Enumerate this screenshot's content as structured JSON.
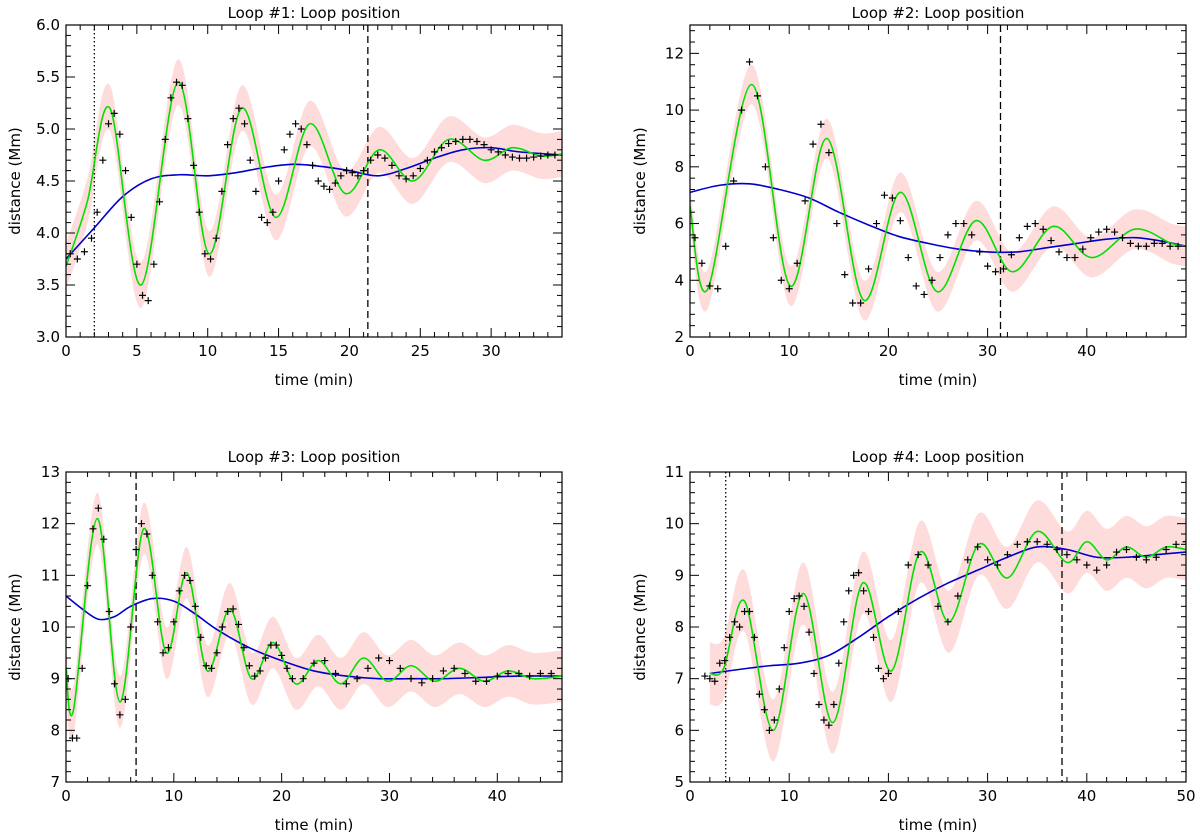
{
  "colors": {
    "fit": "#00e000",
    "trend": "#0000cc",
    "band": "#ffdcdc",
    "data": "#000000"
  },
  "chart_data": [
    {
      "type": "line",
      "title": "Loop #1: Loop position",
      "xlabel": "time (min)",
      "ylabel": "distance (Mm)",
      "xlim": [
        0,
        35
      ],
      "ylim": [
        3.0,
        6.0
      ],
      "xticks": [
        0,
        5,
        10,
        15,
        20,
        25,
        30
      ],
      "xtick_labels": [
        "0",
        "5",
        "10",
        "15",
        "20",
        "25",
        "30"
      ],
      "yticks": [
        3.0,
        3.5,
        4.0,
        4.5,
        5.0,
        5.5,
        6.0
      ],
      "ytick_labels": [
        "3.0",
        "3.5",
        "4.0",
        "4.5",
        "5.0",
        "5.5",
        "6.0"
      ],
      "vlines": [
        {
          "x": 2.0,
          "style": "dotted"
        },
        {
          "x": 21.3,
          "style": "dashed"
        }
      ],
      "series": [
        {
          "name": "trend",
          "style": "blue-line",
          "x": [
            0,
            2,
            4,
            6,
            8,
            10,
            12,
            14,
            16,
            18,
            20,
            22,
            24,
            26,
            28,
            30,
            32,
            35
          ],
          "y": [
            3.75,
            4.05,
            4.35,
            4.52,
            4.56,
            4.55,
            4.58,
            4.63,
            4.66,
            4.64,
            4.6,
            4.55,
            4.62,
            4.72,
            4.8,
            4.82,
            4.78,
            4.75
          ]
        },
        {
          "name": "fit",
          "style": "green-line",
          "x": [
            0,
            1.5,
            3.1,
            5.3,
            7.9,
            10.1,
            12.4,
            14.8,
            17.2,
            19.7,
            22.1,
            24.5,
            27.0,
            29.5,
            31.5,
            33.5,
            35
          ],
          "y": [
            3.68,
            4.3,
            5.2,
            3.5,
            5.45,
            3.8,
            5.2,
            4.15,
            5.05,
            4.38,
            4.8,
            4.5,
            4.9,
            4.7,
            4.82,
            4.74,
            4.76
          ]
        },
        {
          "name": "observed",
          "style": "plus-markers",
          "x": [
            0.3,
            0.8,
            1.3,
            1.8,
            2.2,
            2.6,
            3.0,
            3.4,
            3.8,
            4.2,
            4.6,
            5.0,
            5.4,
            5.8,
            6.2,
            6.6,
            7.0,
            7.4,
            7.8,
            8.2,
            8.6,
            9.0,
            9.4,
            9.8,
            10.2,
            10.6,
            11.0,
            11.4,
            11.8,
            12.2,
            12.6,
            13.0,
            13.4,
            13.8,
            14.2,
            14.6,
            15.0,
            15.4,
            15.8,
            16.2,
            16.6,
            17.0,
            17.4,
            17.8,
            18.2,
            18.6,
            19.0,
            19.4,
            19.8,
            20.2,
            20.6,
            21.0,
            21.5,
            22.0,
            22.5,
            23.0,
            23.5,
            24.0,
            24.5,
            25.0,
            25.5,
            26.0,
            26.5,
            27.0,
            27.5,
            28.0,
            28.5,
            29.0,
            29.5,
            30.0,
            30.5,
            31.0,
            31.5,
            32.0,
            32.5,
            33.0,
            33.5,
            34.0,
            34.5
          ],
          "y": [
            3.8,
            3.75,
            3.82,
            3.95,
            4.2,
            4.7,
            5.05,
            5.15,
            4.95,
            4.6,
            4.15,
            3.7,
            3.4,
            3.35,
            3.7,
            4.3,
            4.9,
            5.3,
            5.45,
            5.42,
            5.1,
            4.65,
            4.2,
            3.8,
            3.75,
            3.95,
            4.4,
            4.85,
            5.1,
            5.2,
            5.05,
            4.7,
            4.4,
            4.15,
            4.1,
            4.2,
            4.5,
            4.8,
            4.95,
            5.05,
            5.0,
            4.85,
            4.65,
            4.5,
            4.45,
            4.42,
            4.48,
            4.55,
            4.6,
            4.58,
            4.55,
            4.6,
            4.7,
            4.75,
            4.72,
            4.65,
            4.55,
            4.52,
            4.55,
            4.62,
            4.7,
            4.78,
            4.82,
            4.86,
            4.88,
            4.9,
            4.9,
            4.88,
            4.85,
            4.8,
            4.78,
            4.75,
            4.73,
            4.72,
            4.72,
            4.73,
            4.74,
            4.75,
            4.75
          ]
        }
      ],
      "band_halfwidth": 0.22
    },
    {
      "type": "line",
      "title": "Loop #2: Loop position",
      "xlabel": "time (min)",
      "ylabel": "distance (Mm)",
      "xlim": [
        0,
        50
      ],
      "ylim": [
        2,
        13
      ],
      "xticks": [
        0,
        10,
        20,
        30,
        40
      ],
      "xtick_labels": [
        "0",
        "10",
        "20",
        "30",
        "40"
      ],
      "yticks": [
        2,
        4,
        6,
        8,
        10,
        12
      ],
      "ytick_labels": [
        "2",
        "4",
        "6",
        "8",
        "10",
        "12"
      ],
      "vlines": [
        {
          "x": 31.3,
          "style": "dashed"
        }
      ],
      "series": [
        {
          "name": "trend",
          "style": "blue-line",
          "x": [
            0,
            3,
            6,
            9,
            12,
            15,
            18,
            21,
            24,
            27,
            30,
            33,
            36,
            39,
            42,
            45,
            48,
            50
          ],
          "y": [
            7.1,
            7.35,
            7.4,
            7.2,
            6.9,
            6.4,
            5.95,
            5.55,
            5.3,
            5.1,
            5.0,
            5.0,
            5.15,
            5.3,
            5.45,
            5.5,
            5.35,
            5.2
          ]
        },
        {
          "name": "fit",
          "style": "green-line",
          "x": [
            0,
            1.8,
            6.2,
            10.1,
            13.8,
            17.5,
            21.2,
            24.9,
            28.8,
            32.5,
            36.6,
            40.5,
            44.8,
            48.5,
            50
          ],
          "y": [
            6.6,
            3.7,
            10.9,
            3.8,
            9.0,
            3.3,
            7.1,
            3.6,
            6.1,
            4.3,
            5.9,
            4.8,
            5.8,
            5.3,
            5.2
          ]
        },
        {
          "name": "observed",
          "style": "plus-markers",
          "x": [
            0.5,
            1.2,
            2.0,
            2.8,
            3.6,
            4.4,
            5.2,
            6.0,
            6.8,
            7.6,
            8.4,
            9.2,
            10.0,
            10.8,
            11.6,
            12.4,
            13.2,
            14.0,
            14.8,
            15.6,
            16.4,
            17.2,
            18.0,
            18.8,
            19.6,
            20.4,
            21.2,
            22.0,
            22.8,
            23.6,
            24.4,
            25.2,
            26.0,
            26.8,
            27.6,
            28.4,
            29.2,
            30.0,
            30.8,
            31.6,
            32.4,
            33.2,
            34.0,
            34.8,
            35.6,
            36.4,
            37.2,
            38.0,
            38.8,
            39.6,
            40.4,
            41.2,
            42.0,
            42.8,
            43.6,
            44.4,
            45.2,
            46.0,
            46.8,
            47.6,
            48.4,
            49.2
          ],
          "y": [
            5.5,
            4.6,
            3.8,
            3.7,
            5.2,
            7.5,
            10.0,
            11.7,
            10.5,
            8.0,
            5.5,
            4.0,
            3.7,
            4.6,
            6.8,
            8.8,
            9.5,
            8.5,
            6.0,
            4.2,
            3.2,
            3.2,
            4.4,
            6.0,
            7.0,
            6.9,
            6.1,
            4.8,
            3.8,
            3.5,
            4.0,
            4.8,
            5.6,
            6.0,
            6.0,
            5.6,
            5.0,
            4.5,
            4.3,
            4.4,
            4.9,
            5.5,
            5.9,
            6.0,
            5.8,
            5.4,
            5.0,
            4.8,
            4.8,
            5.1,
            5.5,
            5.7,
            5.8,
            5.7,
            5.5,
            5.3,
            5.2,
            5.2,
            5.3,
            5.3,
            5.2,
            5.2
          ]
        }
      ],
      "band_halfwidth": 0.7
    },
    {
      "type": "line",
      "title": "Loop #3: Loop position",
      "xlabel": "time (min)",
      "ylabel": "distance (Mm)",
      "xlim": [
        0,
        46
      ],
      "ylim": [
        7,
        13
      ],
      "xticks": [
        0,
        10,
        20,
        30,
        40
      ],
      "xtick_labels": [
        "0",
        "10",
        "20",
        "30",
        "40"
      ],
      "yticks": [
        7,
        8,
        9,
        10,
        11,
        12,
        13
      ],
      "ytick_labels": [
        "7",
        "8",
        "9",
        "10",
        "11",
        "12",
        "13"
      ],
      "vlines": [
        {
          "x": 6.5,
          "style": "dashed"
        }
      ],
      "series": [
        {
          "name": "trend",
          "style": "blue-line",
          "x": [
            0,
            1.5,
            3,
            4.5,
            6,
            8,
            10,
            12,
            14,
            17,
            20,
            23,
            26,
            29,
            32,
            35,
            38,
            42,
            46
          ],
          "y": [
            10.6,
            10.35,
            10.15,
            10.2,
            10.4,
            10.55,
            10.5,
            10.25,
            9.95,
            9.6,
            9.35,
            9.15,
            9.05,
            9.0,
            9.0,
            9.0,
            9.02,
            9.05,
            9.05
          ]
        },
        {
          "name": "fit",
          "style": "green-line",
          "x": [
            0,
            0.7,
            2.9,
            5.0,
            7.2,
            9.3,
            11.2,
            13.1,
            15.2,
            17.2,
            19.2,
            21.3,
            23.4,
            25.5,
            27.6,
            29.8,
            32.0,
            34.2,
            36.5,
            38.8,
            41.0,
            43.3,
            46
          ],
          "y": [
            9.2,
            8.4,
            12.1,
            8.55,
            11.9,
            9.5,
            11.05,
            9.15,
            10.35,
            9.0,
            9.7,
            8.9,
            9.35,
            8.9,
            9.4,
            8.95,
            9.25,
            8.95,
            9.2,
            8.95,
            9.15,
            9.0,
            9.05
          ]
        },
        {
          "name": "observed",
          "style": "plus-markers",
          "x": [
            0.2,
            0.6,
            1.0,
            1.5,
            2.0,
            2.5,
            3.0,
            3.5,
            4.0,
            4.5,
            5.0,
            5.5,
            6.0,
            6.5,
            7.0,
            7.5,
            8.0,
            8.5,
            9.0,
            9.5,
            10.0,
            10.5,
            11.0,
            11.5,
            12.0,
            12.5,
            13.0,
            13.5,
            14.0,
            14.5,
            15.0,
            15.5,
            16.0,
            16.5,
            17.0,
            17.5,
            18.0,
            18.5,
            19.0,
            19.5,
            20.0,
            20.5,
            21.0,
            22.0,
            23.0,
            24.0,
            25.0,
            26.0,
            27.0,
            28.0,
            29.0,
            30.0,
            31.0,
            32.0,
            33.0,
            34.0,
            35.0,
            36.0,
            37.0,
            38.0,
            39.0,
            40.0,
            41.0,
            42.0,
            43.0,
            44.0,
            45.0
          ],
          "y": [
            9.0,
            7.85,
            7.85,
            9.2,
            10.8,
            11.9,
            12.3,
            11.7,
            10.3,
            8.9,
            8.3,
            8.6,
            10.0,
            11.5,
            12.0,
            11.8,
            11.0,
            10.1,
            9.5,
            9.6,
            10.1,
            10.7,
            11.0,
            10.9,
            10.4,
            9.8,
            9.25,
            9.2,
            9.5,
            10.0,
            10.3,
            10.35,
            10.05,
            9.6,
            9.25,
            9.05,
            9.15,
            9.4,
            9.65,
            9.65,
            9.45,
            9.2,
            9.0,
            9.0,
            9.3,
            9.35,
            9.1,
            8.9,
            9.0,
            9.2,
            9.4,
            9.35,
            9.2,
            9.0,
            8.92,
            9.0,
            9.15,
            9.2,
            9.1,
            8.95,
            8.95,
            9.05,
            9.1,
            9.1,
            9.05,
            9.1,
            9.1
          ]
        }
      ],
      "band_halfwidth": 0.5
    },
    {
      "type": "line",
      "title": "Loop #4: Loop position",
      "xlabel": "time (min)",
      "ylabel": "distance (Mm)",
      "xlim": [
        0,
        50
      ],
      "ylim": [
        5,
        11
      ],
      "xticks": [
        0,
        10,
        20,
        30,
        40,
        50
      ],
      "xtick_labels": [
        "0",
        "10",
        "20",
        "30",
        "40",
        "50"
      ],
      "yticks": [
        5,
        6,
        7,
        8,
        9,
        10,
        11
      ],
      "ytick_labels": [
        "5",
        "6",
        "7",
        "8",
        "9",
        "10",
        "11"
      ],
      "vlines": [
        {
          "x": 3.6,
          "style": "dotted"
        },
        {
          "x": 37.5,
          "style": "dashed"
        }
      ],
      "series": [
        {
          "name": "trend",
          "style": "blue-line",
          "x": [
            2,
            5,
            8,
            11,
            14,
            17,
            20,
            23,
            26,
            29,
            32,
            35,
            38,
            41,
            44,
            47,
            50
          ],
          "y": [
            7.1,
            7.18,
            7.25,
            7.3,
            7.45,
            7.8,
            8.2,
            8.55,
            8.85,
            9.1,
            9.35,
            9.55,
            9.5,
            9.35,
            9.35,
            9.4,
            9.45
          ]
        },
        {
          "name": "fit",
          "style": "green-line",
          "x": [
            2,
            3.4,
            5.5,
            8.4,
            11.4,
            14.4,
            17.4,
            20.3,
            23.2,
            26.1,
            29.1,
            32.0,
            35.0,
            38.0,
            40.0,
            42.0,
            44.0,
            46.0,
            48.0,
            50
          ],
          "y": [
            7.1,
            7.2,
            8.5,
            6.0,
            8.65,
            6.15,
            8.85,
            7.15,
            9.45,
            8.1,
            9.6,
            8.95,
            9.85,
            9.25,
            9.65,
            9.3,
            9.55,
            9.35,
            9.55,
            9.5
          ]
        },
        {
          "name": "observed",
          "style": "plus-markers",
          "x": [
            1.5,
            2.0,
            2.5,
            3.0,
            3.5,
            4.0,
            4.5,
            5.0,
            5.5,
            6.0,
            6.5,
            7.0,
            7.5,
            8.0,
            8.5,
            9.0,
            9.5,
            10.0,
            10.5,
            11.0,
            11.5,
            12.0,
            12.5,
            13.0,
            13.5,
            14.0,
            14.5,
            15.0,
            15.5,
            16.0,
            16.5,
            17.0,
            17.5,
            18.0,
            18.5,
            19.0,
            19.5,
            20.0,
            21.0,
            22.0,
            23.0,
            24.0,
            25.0,
            26.0,
            27.0,
            28.0,
            29.0,
            30.0,
            31.0,
            32.0,
            33.0,
            34.0,
            35.0,
            36.0,
            37.0,
            38.0,
            39.0,
            40.0,
            41.0,
            42.0,
            43.0,
            44.0,
            45.0,
            46.0,
            47.0,
            48.0,
            49.0,
            50.0
          ],
          "y": [
            7.05,
            7.0,
            6.95,
            7.3,
            7.35,
            7.8,
            8.1,
            8.0,
            8.3,
            8.3,
            7.8,
            6.7,
            6.4,
            6.0,
            6.2,
            6.8,
            7.6,
            8.3,
            8.55,
            8.6,
            8.4,
            7.9,
            7.1,
            6.5,
            6.2,
            6.1,
            6.5,
            7.3,
            8.1,
            8.7,
            9.0,
            9.05,
            8.7,
            8.3,
            7.8,
            7.2,
            7.0,
            7.1,
            8.3,
            9.2,
            9.4,
            9.2,
            8.4,
            8.1,
            8.6,
            9.3,
            9.55,
            9.3,
            9.2,
            9.4,
            9.6,
            9.65,
            9.65,
            9.6,
            9.5,
            9.4,
            9.3,
            9.2,
            9.1,
            9.2,
            9.45,
            9.5,
            9.35,
            9.3,
            9.35,
            9.5,
            9.6,
            9.65
          ]
        }
      ],
      "band_halfwidth": 0.6
    }
  ]
}
